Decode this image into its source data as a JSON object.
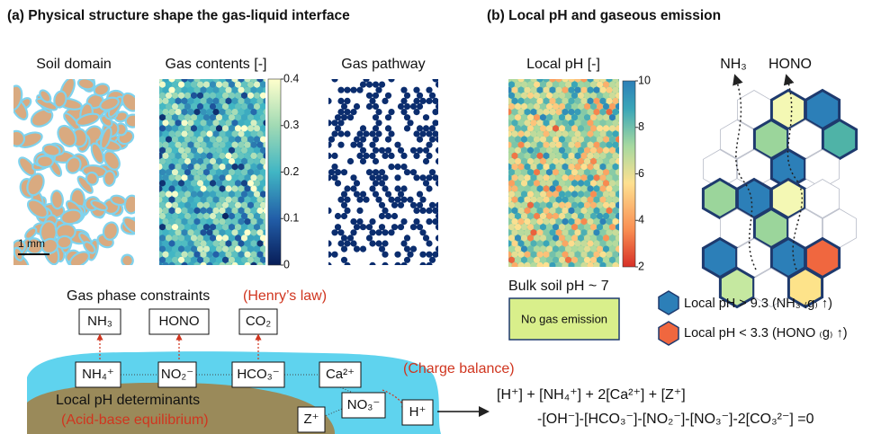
{
  "panel_a": {
    "title": "(a) Physical structure shape the gas-liquid interface",
    "soil_domain": {
      "title": "Soil domain",
      "scale_bar": "1 mm"
    },
    "gas_contents": {
      "title": "Gas contents [-]",
      "colorbar_ticks": [
        0.4,
        0.3,
        0.2,
        0.1,
        0
      ]
    },
    "gas_pathway": {
      "title": "Gas pathway"
    }
  },
  "panel_b": {
    "title": "(b) Local pH and gaseous emission",
    "local_ph": {
      "title": "Local pH [-]",
      "colorbar_ticks": [
        10,
        8,
        6,
        4,
        2
      ]
    },
    "emission_labels": [
      "NH₃",
      "HONO"
    ],
    "bulk": {
      "label": "Bulk soil pH ~ 7",
      "box": "No gas emission"
    },
    "legend": [
      "Local pH > 9.3 (NH₃ ₍g₎ ↑)",
      "Local pH < 3.3 (HONO ₍g₎ ↑)"
    ]
  },
  "bottom": {
    "gas_constraints": {
      "title": "Gas phase constraints",
      "law": "(Henry’s law)",
      "species": [
        "NH₃",
        "HONO",
        "CO₂"
      ]
    },
    "liquid_species": [
      "NH₄⁺",
      "NO₂⁻",
      "HCO₃⁻",
      "Ca²⁺",
      "NO₃⁻",
      "H⁺",
      "Z⁺"
    ],
    "determinants": "Local pH determinants",
    "equilibrium": "(Acid-base equilibrium)",
    "charge_balance": "(Charge balance)",
    "equation": [
      "[H⁺] + [NH₄⁺] + 2[Ca²⁺] + [Z⁺]",
      "-[OH⁻]-[HCO₃⁻]-[NO₂⁻]-[NO₃⁻]-2[CO₃²⁻] =0"
    ]
  }
}
